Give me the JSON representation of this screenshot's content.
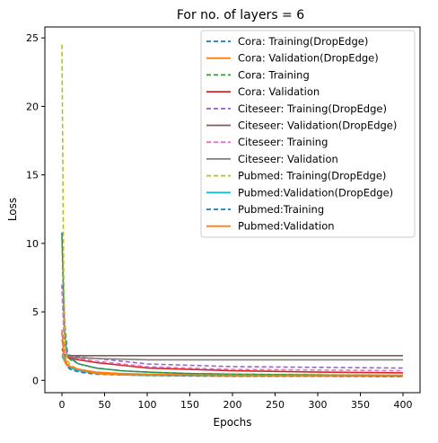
{
  "chart_data": {
    "type": "line",
    "title": "For no. of layers =  6",
    "xlabel": "Epochs",
    "ylabel": "Loss",
    "xlim": [
      -20,
      420
    ],
    "ylim": [
      -0.9,
      25.8
    ],
    "xticks": [
      "0",
      "50",
      "100",
      "150",
      "200",
      "250",
      "300",
      "350",
      "400"
    ],
    "xtick_values": [
      0,
      50,
      100,
      150,
      200,
      250,
      300,
      350,
      400
    ],
    "yticks": [
      "0",
      "5",
      "10",
      "15",
      "20",
      "25"
    ],
    "ytick_values": [
      0,
      5,
      10,
      15,
      20,
      25
    ],
    "grid": false,
    "legend_position": "top-right",
    "series": [
      {
        "name": "Cora: Training(DropEdge)",
        "color": "#1f77b4",
        "dashed": true,
        "x": [
          0,
          3,
          6,
          10,
          20,
          40,
          70,
          100,
          150,
          200,
          300,
          400
        ],
        "y": [
          10.8,
          4.5,
          2.2,
          1.6,
          1.2,
          0.9,
          0.7,
          0.6,
          0.5,
          0.45,
          0.4,
          0.35
        ]
      },
      {
        "name": "Cora: Validation(DropEdge)",
        "color": "#ff7f0e",
        "dashed": false,
        "x": [
          0,
          3,
          6,
          10,
          20,
          40,
          70,
          100,
          150,
          200,
          300,
          400
        ],
        "y": [
          3.0,
          1.8,
          1.2,
          1.0,
          0.8,
          0.6,
          0.5,
          0.45,
          0.42,
          0.4,
          0.4,
          0.38
        ]
      },
      {
        "name": "Cora: Training",
        "color": "#2ca02c",
        "dashed": true,
        "x": [
          0,
          3,
          6,
          10,
          20,
          40,
          70,
          100,
          150,
          200,
          300,
          400
        ],
        "y": [
          10.5,
          3.5,
          1.8,
          1.5,
          1.2,
          0.9,
          0.7,
          0.6,
          0.5,
          0.45,
          0.4,
          0.35
        ]
      },
      {
        "name": "Cora: Validation",
        "color": "#d62728",
        "dashed": false,
        "x": [
          0,
          3,
          6,
          10,
          20,
          40,
          70,
          100,
          150,
          200,
          300,
          400
        ],
        "y": [
          2.3,
          1.9,
          1.7,
          1.6,
          1.5,
          1.3,
          1.1,
          0.9,
          0.8,
          0.7,
          0.6,
          0.55
        ]
      },
      {
        "name": "Citeseer: Training(DropEdge)",
        "color": "#9467bd",
        "dashed": true,
        "x": [
          0,
          3,
          6,
          10,
          20,
          40,
          70,
          100,
          150,
          200,
          300,
          400
        ],
        "y": [
          7.0,
          2.5,
          1.9,
          1.8,
          1.7,
          1.6,
          1.4,
          1.2,
          1.1,
          1.0,
          0.95,
          0.9
        ]
      },
      {
        "name": "Citeseer: Validation(DropEdge)",
        "color": "#8c564b",
        "dashed": false,
        "x": [
          0,
          3,
          6,
          10,
          20,
          40,
          70,
          100,
          150,
          200,
          300,
          400
        ],
        "y": [
          1.9,
          1.85,
          1.8,
          1.8,
          1.8,
          1.8,
          1.8,
          1.8,
          1.8,
          1.8,
          1.8,
          1.8
        ]
      },
      {
        "name": "Citeseer: Training",
        "color": "#e377c2",
        "dashed": true,
        "x": [
          0,
          3,
          6,
          10,
          20,
          40,
          70,
          100,
          150,
          200,
          300,
          400
        ],
        "y": [
          6.5,
          2.3,
          1.8,
          1.7,
          1.6,
          1.4,
          1.2,
          1.0,
          0.9,
          0.8,
          0.75,
          0.7
        ]
      },
      {
        "name": "Citeseer: Validation",
        "color": "#7f7f7f",
        "dashed": false,
        "x": [
          0,
          3,
          6,
          10,
          20,
          40,
          70,
          100,
          150,
          200,
          300,
          400
        ],
        "y": [
          1.9,
          1.8,
          1.75,
          1.7,
          1.65,
          1.6,
          1.55,
          1.5,
          1.5,
          1.5,
          1.5,
          1.5
        ]
      },
      {
        "name": "Pubmed: Training(DropEdge)",
        "color": "#bcbd22",
        "dashed": true,
        "x": [
          0,
          2,
          4,
          6,
          10,
          20,
          40,
          70,
          100,
          150,
          200,
          300,
          400
        ],
        "y": [
          24.5,
          8.0,
          2.5,
          1.5,
          1.1,
          0.8,
          0.5,
          0.4,
          0.35,
          0.33,
          0.3,
          0.3,
          0.28
        ]
      },
      {
        "name": "Pubmed:Validation(DropEdge)",
        "color": "#17becf",
        "dashed": false,
        "x": [
          0,
          3,
          6,
          10,
          20,
          40,
          70,
          100,
          150,
          200,
          300,
          400
        ],
        "y": [
          1.8,
          1.4,
          1.1,
          0.9,
          0.7,
          0.5,
          0.42,
          0.4,
          0.38,
          0.36,
          0.35,
          0.35
        ]
      },
      {
        "name": "Pubmed:Training",
        "color": "#1f77b4",
        "dashed": true,
        "x": [
          0,
          3,
          6,
          10,
          20,
          40,
          70,
          100,
          150,
          200,
          300,
          400
        ],
        "y": [
          3.5,
          1.5,
          1.0,
          0.8,
          0.6,
          0.45,
          0.4,
          0.36,
          0.33,
          0.3,
          0.3,
          0.28
        ]
      },
      {
        "name": "Pubmed:Validation",
        "color": "#ff7f0e",
        "dashed": false,
        "x": [
          0,
          3,
          6,
          10,
          20,
          40,
          70,
          100,
          150,
          200,
          300,
          400
        ],
        "y": [
          3.7,
          1.4,
          1.1,
          1.0,
          0.8,
          0.5,
          0.42,
          0.4,
          0.38,
          0.36,
          0.35,
          0.35
        ]
      }
    ]
  }
}
